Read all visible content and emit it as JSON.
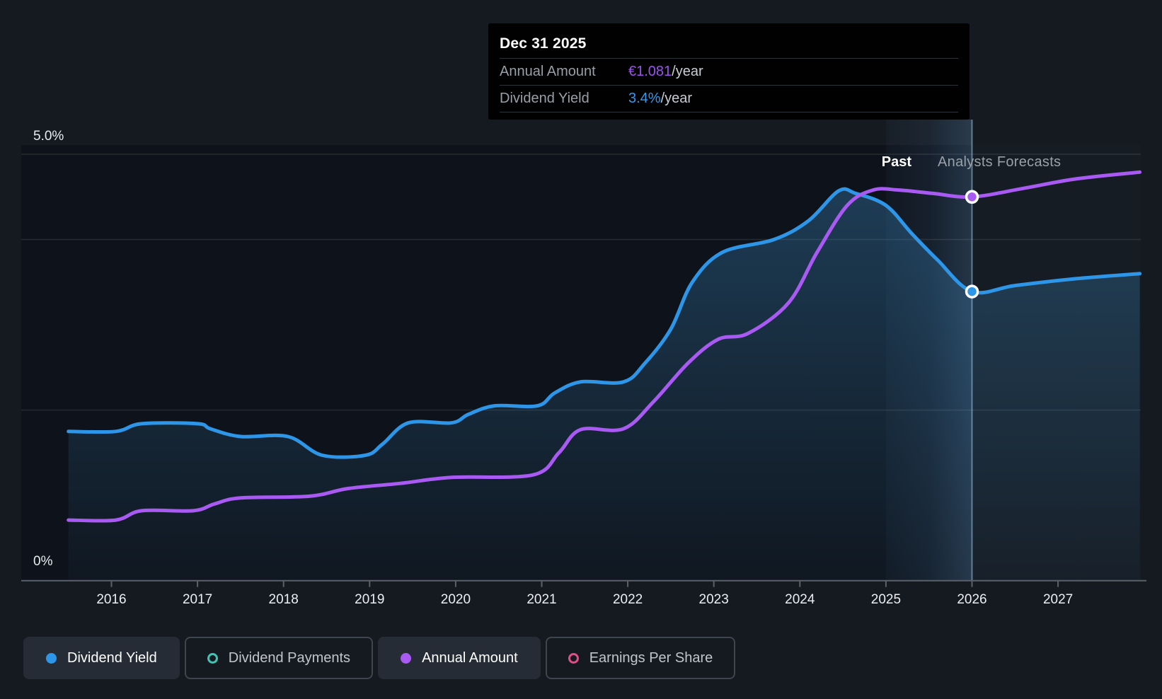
{
  "tooltip": {
    "date": "Dec 31 2025",
    "rows": [
      {
        "label": "Annual Amount",
        "value": "€1.081",
        "unit": "/year",
        "color": "#9e50f2"
      },
      {
        "label": "Dividend Yield",
        "value": "3.4%",
        "unit": "/year",
        "color": "#2e9bf0"
      }
    ]
  },
  "labels": {
    "past": "Past",
    "analysts_forecasts": "Analysts Forecasts",
    "y_axis_top": "5.0%",
    "y_axis_bottom": "0%"
  },
  "legend": [
    {
      "label": "Dividend Yield",
      "color": "#2e96e8",
      "style": "filled",
      "active": true
    },
    {
      "label": "Dividend Payments",
      "color": "#41c4b4",
      "style": "outline",
      "active": false
    },
    {
      "label": "Annual Amount",
      "color": "#a85af2",
      "style": "filled",
      "active": true
    },
    {
      "label": "Earnings Per Share",
      "color": "#df4e84",
      "style": "outline",
      "active": false
    }
  ],
  "chart_data": {
    "type": "line",
    "title": "Dividend history and forecast",
    "x_ticks": [
      2016,
      2017,
      2018,
      2019,
      2020,
      2021,
      2022,
      2023,
      2024,
      2025,
      2026,
      2027
    ],
    "x_range": [
      2015.5,
      2027.95
    ],
    "ylim": [
      0,
      5
    ],
    "y_tick_labels": [
      "0%",
      "5.0%"
    ],
    "gridline_pcts": [
      5,
      4,
      2
    ],
    "grid": true,
    "legend_position": "bottom",
    "divider_x": 2026.0,
    "divider_label_left": "Past",
    "divider_label_right": "Analysts Forecasts",
    "hover_band_x": [
      2025.0,
      2026.0
    ],
    "hover_point_date": "Dec 31 2025",
    "series": [
      {
        "name": "Dividend Yield",
        "color": "#2e96e8",
        "area_fill": true,
        "marker": {
          "x": 2026.0,
          "y": 3.39,
          "display_value": "3.4%/year"
        },
        "points": [
          [
            2015.5,
            1.75
          ],
          [
            2016.05,
            1.75
          ],
          [
            2016.35,
            1.84
          ],
          [
            2017.0,
            1.84
          ],
          [
            2017.15,
            1.78
          ],
          [
            2017.5,
            1.69
          ],
          [
            2018.05,
            1.69
          ],
          [
            2018.45,
            1.47
          ],
          [
            2018.95,
            1.47
          ],
          [
            2019.15,
            1.6
          ],
          [
            2019.45,
            1.85
          ],
          [
            2019.95,
            1.85
          ],
          [
            2020.15,
            1.95
          ],
          [
            2020.45,
            2.05
          ],
          [
            2020.95,
            2.05
          ],
          [
            2021.15,
            2.2
          ],
          [
            2021.45,
            2.33
          ],
          [
            2021.95,
            2.33
          ],
          [
            2022.2,
            2.55
          ],
          [
            2022.5,
            2.95
          ],
          [
            2022.75,
            3.5
          ],
          [
            2023.1,
            3.85
          ],
          [
            2023.7,
            4.0
          ],
          [
            2024.1,
            4.22
          ],
          [
            2024.45,
            4.57
          ],
          [
            2024.65,
            4.54
          ],
          [
            2025.0,
            4.4
          ],
          [
            2025.3,
            4.07
          ],
          [
            2025.6,
            3.76
          ],
          [
            2026.0,
            3.39
          ],
          [
            2026.5,
            3.46
          ],
          [
            2027.2,
            3.54
          ],
          [
            2027.95,
            3.6
          ]
        ]
      },
      {
        "name": "Annual Amount",
        "color": "#a85af2",
        "area_fill": false,
        "marker": {
          "x": 2026.0,
          "y": 4.5,
          "display_value": "€1.081/year"
        },
        "points": [
          [
            2015.5,
            0.71
          ],
          [
            2016.05,
            0.71
          ],
          [
            2016.35,
            0.82
          ],
          [
            2016.95,
            0.82
          ],
          [
            2017.2,
            0.9
          ],
          [
            2017.5,
            0.97
          ],
          [
            2018.3,
            0.99
          ],
          [
            2018.75,
            1.08
          ],
          [
            2019.35,
            1.14
          ],
          [
            2019.95,
            1.21
          ],
          [
            2020.9,
            1.24
          ],
          [
            2021.2,
            1.5
          ],
          [
            2021.45,
            1.77
          ],
          [
            2021.95,
            1.78
          ],
          [
            2022.3,
            2.1
          ],
          [
            2022.7,
            2.55
          ],
          [
            2023.05,
            2.83
          ],
          [
            2023.4,
            2.9
          ],
          [
            2023.87,
            3.26
          ],
          [
            2024.2,
            3.85
          ],
          [
            2024.55,
            4.4
          ],
          [
            2024.85,
            4.58
          ],
          [
            2025.15,
            4.58
          ],
          [
            2025.55,
            4.54
          ],
          [
            2026.0,
            4.5
          ],
          [
            2026.6,
            4.6
          ],
          [
            2027.2,
            4.71
          ],
          [
            2027.95,
            4.79
          ]
        ]
      }
    ]
  }
}
